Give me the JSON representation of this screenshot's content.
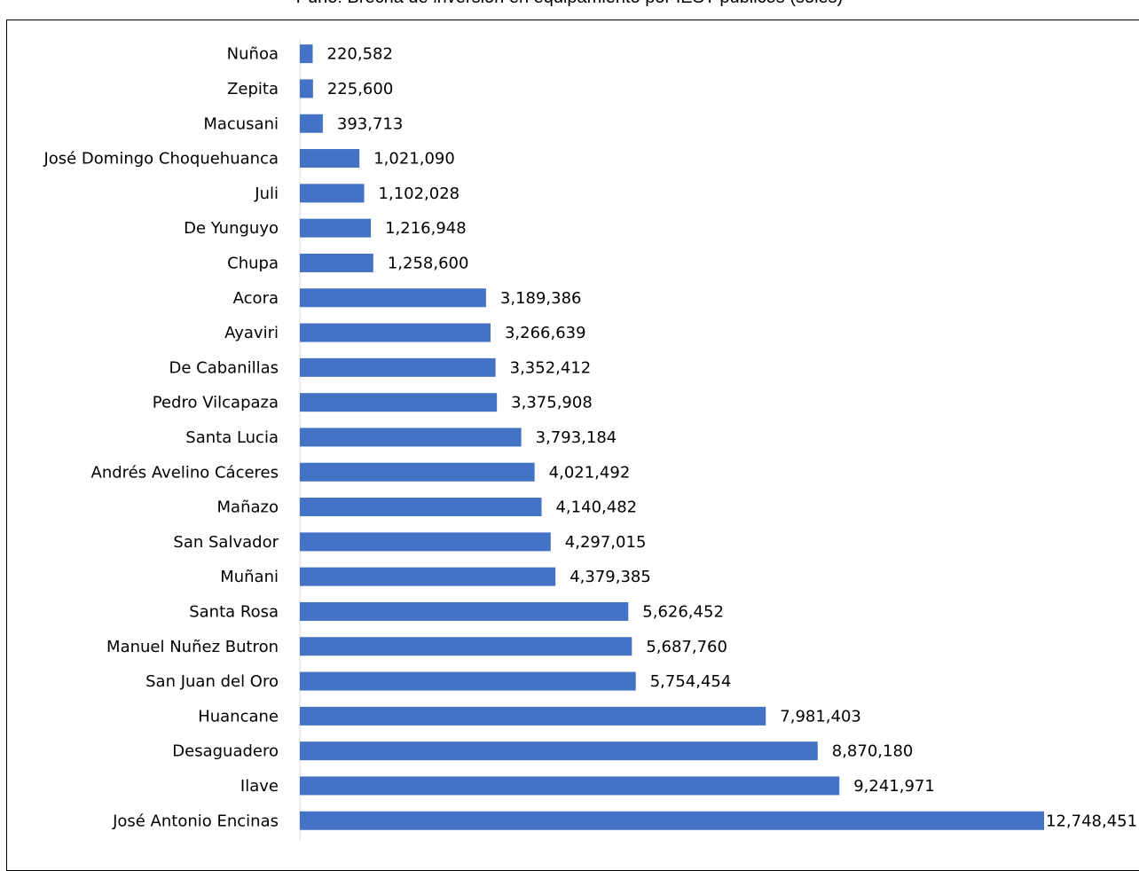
{
  "chart_data": {
    "type": "bar",
    "orientation": "horizontal",
    "title": "Puno: Brecha de inversión en equipamiento por IEST públicos (soles)",
    "categories": [
      "Nuñoa",
      "Zepita",
      "Macusani",
      "José Domingo Choquehuanca",
      "Juli",
      "De Yunguyo",
      "Chupa",
      "Acora",
      "Ayaviri",
      "De Cabanillas",
      "Pedro Vilcapaza",
      "Santa Lucia",
      "Andrés Avelino Cáceres",
      "Mañazo",
      "San Salvador",
      "Muñani",
      "Santa Rosa",
      "Manuel Nuñez Butron",
      "San Juan del Oro",
      "Huancane",
      "Desaguadero",
      "Ilave",
      "José Antonio Encinas"
    ],
    "values": [
      220582,
      225600,
      393713,
      1021090,
      1102028,
      1216948,
      1258600,
      3189386,
      3266639,
      3352412,
      3375908,
      3793184,
      4021492,
      4140482,
      4297015,
      4379385,
      5626452,
      5687760,
      5754454,
      7981403,
      8870180,
      9241971,
      12748451
    ],
    "value_labels": [
      "220,582",
      "225,600",
      "393,713",
      "1,021,090",
      "1,102,028",
      "1,216,948",
      "1,258,600",
      "3,189,386",
      "3,266,639",
      "3,352,412",
      "3,375,908",
      "3,793,184",
      "4,021,492",
      "4,140,482",
      "4,297,015",
      "4,379,385",
      "5,626,452",
      "5,687,760",
      "5,754,454",
      "7,981,403",
      "8,870,180",
      "9,241,971",
      "12,748,451"
    ],
    "xlim": [
      0,
      12748451
    ],
    "grid": false,
    "legend": "none",
    "bar_color": "#4472c4",
    "axis_color": "#d9d9d9"
  }
}
